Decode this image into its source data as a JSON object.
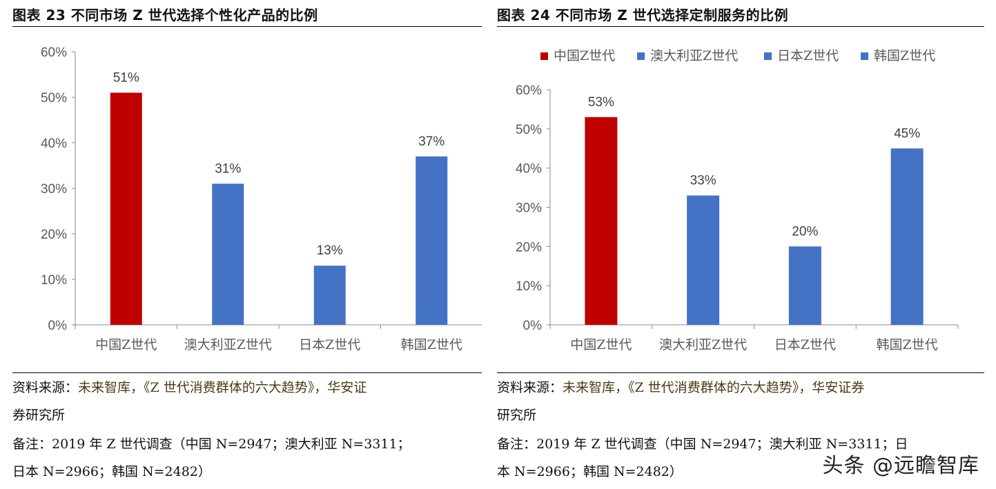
{
  "figures": [
    {
      "id": "left",
      "title": "图表 23  不同市场 Z 世代选择个性化产品的比例",
      "source_prefix": "资料来源：",
      "source_name": "未来智库，《Z 世代消费群体的六大趋势》，华安证",
      "source_tail": "券研究所",
      "note_line1": "备注：2019 年 Z 世代调查（中国 N=2947；澳大利亚 N=3311；",
      "note_line2": "日本 N=2966；韩国 N=2482）"
    },
    {
      "id": "right",
      "title": "图表 24  不同市场 Z 世代选择定制服务的比例",
      "source_prefix": "资料来源：",
      "source_name": "未来智库，《Z 世代消费群体的六大趋势》，华安证券",
      "source_tail": "研究所",
      "note_line1": "备注：2019 年 Z 世代调查（中国 N=2947；澳大利亚 N=3311；日",
      "note_line2": "本 N=2966；韩国 N=2482）"
    }
  ],
  "watermark": "头条 @远瞻智库",
  "chart_data": [
    {
      "type": "bar",
      "categories": [
        "中国Z世代",
        "澳大利亚Z世代",
        "日本Z世代",
        "韩国Z世代"
      ],
      "values": [
        51,
        31,
        13,
        37
      ],
      "value_labels": [
        "51%",
        "31%",
        "13%",
        "37%"
      ],
      "bar_colors": [
        "#C00000",
        "#4472C4",
        "#4472C4",
        "#4472C4"
      ],
      "ylim": [
        0,
        60
      ],
      "yticks": [
        "0%",
        "10%",
        "20%",
        "30%",
        "40%",
        "50%",
        "60%"
      ],
      "legend": null,
      "grid": false
    },
    {
      "type": "bar",
      "categories": [
        "中国Z世代",
        "澳大利亚Z世代",
        "日本Z世代",
        "韩国Z世代"
      ],
      "values": [
        53,
        33,
        20,
        45
      ],
      "value_labels": [
        "53%",
        "33%",
        "20%",
        "45%"
      ],
      "bar_colors": [
        "#C00000",
        "#4472C4",
        "#4472C4",
        "#4472C4"
      ],
      "ylim": [
        0,
        60
      ],
      "yticks": [
        "0%",
        "10%",
        "20%",
        "30%",
        "40%",
        "50%",
        "60%"
      ],
      "legend": {
        "placement": "top",
        "entries": [
          {
            "label": "中国Z世代",
            "color": "#C00000"
          },
          {
            "label": "澳大利亚Z世代",
            "color": "#4472C4"
          },
          {
            "label": "日本Z世代",
            "color": "#4472C4"
          },
          {
            "label": "韩国Z世代",
            "color": "#4472C4"
          }
        ]
      },
      "grid": false
    }
  ]
}
